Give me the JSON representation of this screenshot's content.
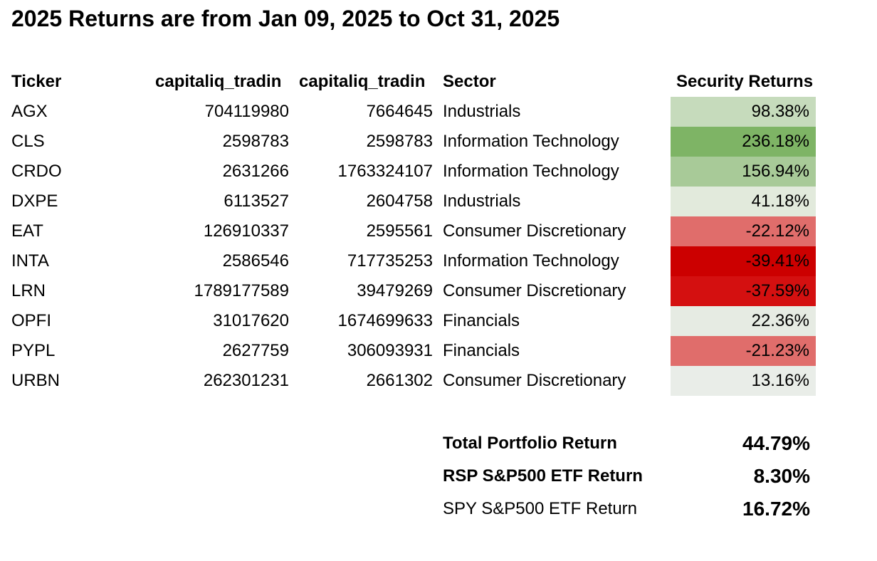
{
  "title": "2025 Returns are from Jan 09, 2025 to Oct 31, 2025",
  "columns": {
    "ticker": "Ticker",
    "col1": "capitaliq_tradin",
    "col2": "capitaliq_tradin",
    "sector": "Sector",
    "returns": "Security Returns"
  },
  "rows": [
    {
      "ticker": "AGX",
      "col1": "704119980",
      "col2": "7664645",
      "sector": "Industrials",
      "return": "98.38%",
      "color": "#c6dbbc"
    },
    {
      "ticker": "CLS",
      "col1": "2598783",
      "col2": "2598783",
      "sector": "Information Technology",
      "return": "236.18%",
      "color": "#7eb465"
    },
    {
      "ticker": "CRDO",
      "col1": "2631266",
      "col2": "1763324107",
      "sector": "Information Technology",
      "return": "156.94%",
      "color": "#a8ca98"
    },
    {
      "ticker": "DXPE",
      "col1": "6113527",
      "col2": "2604758",
      "sector": "Industrials",
      "return": "41.18%",
      "color": "#e2eadc"
    },
    {
      "ticker": "EAT",
      "col1": "126910337",
      "col2": "2595561",
      "sector": "Consumer Discretionary",
      "return": "-22.12%",
      "color": "#e06d6b"
    },
    {
      "ticker": "INTA",
      "col1": "2586546",
      "col2": "717735253",
      "sector": "Information Technology",
      "return": "-39.41%",
      "color": "#cc0000"
    },
    {
      "ticker": "LRN",
      "col1": "1789177589",
      "col2": "39479269",
      "sector": "Consumer Discretionary",
      "return": "-37.59%",
      "color": "#d41010"
    },
    {
      "ticker": "OPFI",
      "col1": "31017620",
      "col2": "1674699633",
      "sector": "Financials",
      "return": "22.36%",
      "color": "#e6ebe3"
    },
    {
      "ticker": "PYPL",
      "col1": "2627759",
      "col2": "306093931",
      "sector": "Financials",
      "return": "-21.23%",
      "color": "#e06d6b"
    },
    {
      "ticker": "URBN",
      "col1": "262301231",
      "col2": "2661302",
      "sector": "Consumer Discretionary",
      "return": "13.16%",
      "color": "#e9ede8"
    }
  ],
  "summary": [
    {
      "label": "Total Portfolio Return",
      "value": "44.79%",
      "label_bold": true
    },
    {
      "label": "RSP S&P500 ETF Return",
      "value": "8.30%",
      "label_bold": true
    },
    {
      "label": "SPY S&P500 ETF Return",
      "value": "16.72%",
      "label_bold": false
    }
  ]
}
